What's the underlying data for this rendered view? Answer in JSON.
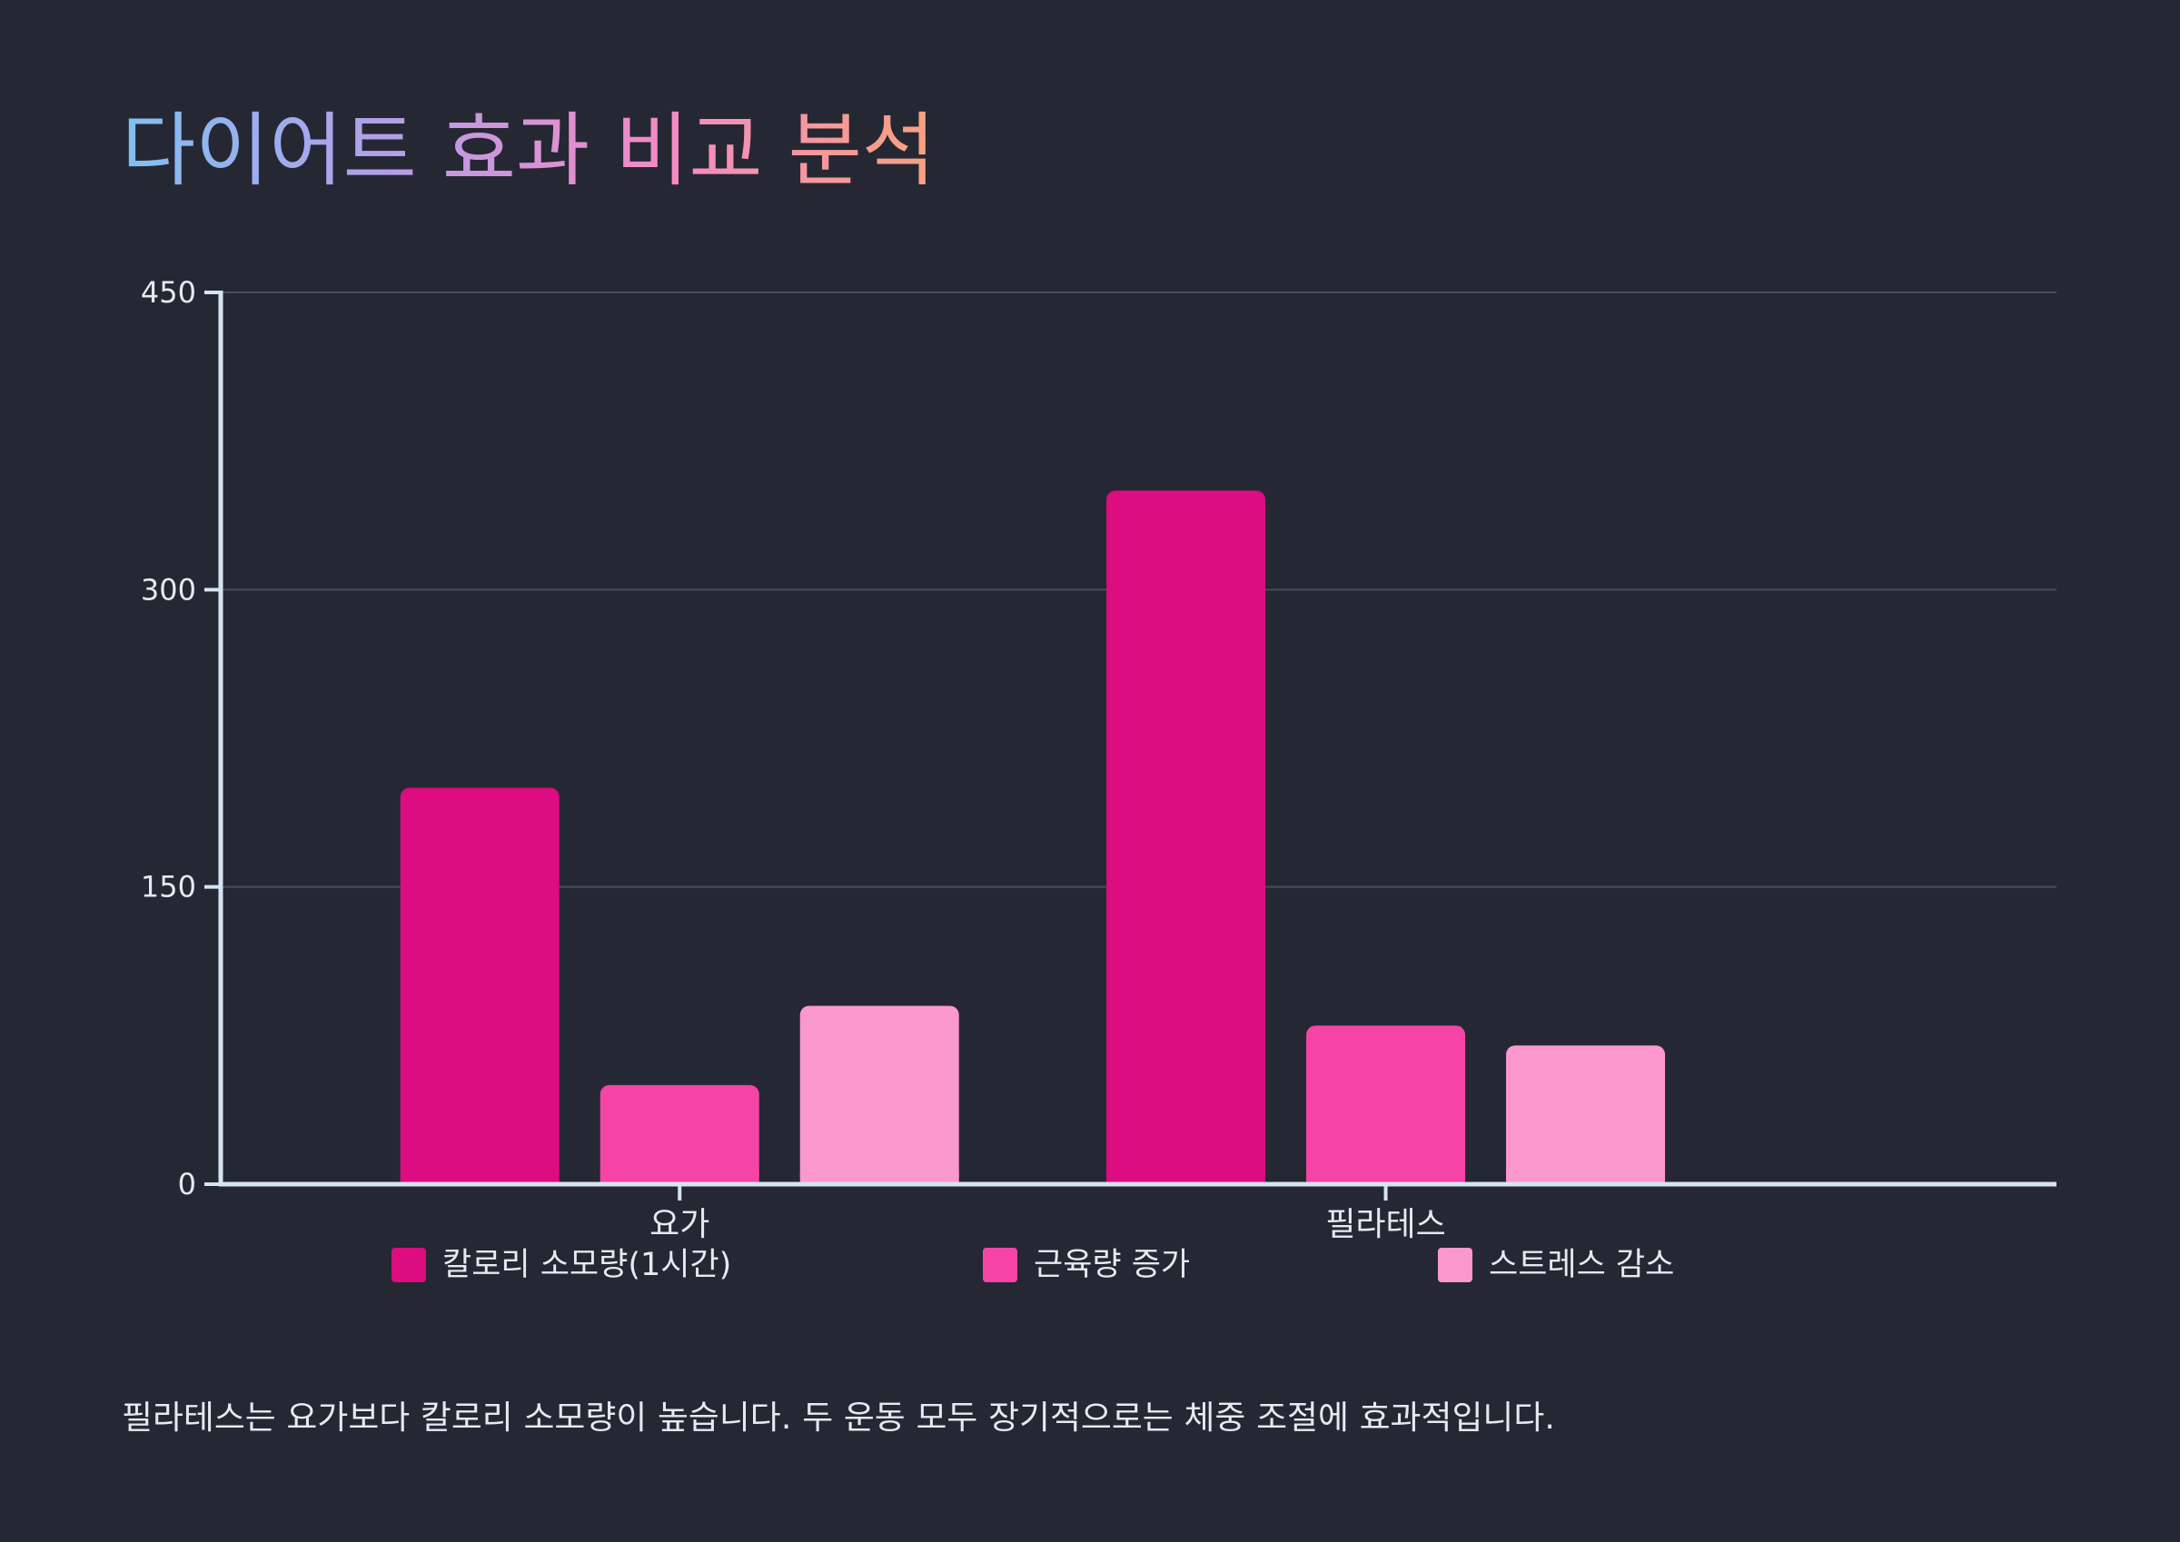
{
  "colors": {
    "background": "#252833",
    "text": "#e6e9f0",
    "grid": "#4a4d58",
    "axis": "#d6e4f2",
    "title_gradient": [
      "#7fc0f2",
      "#b59ee8",
      "#f48ac6",
      "#f7a27e"
    ]
  },
  "chart_data": {
    "type": "bar",
    "title": "다이어트 효과 비교 분석",
    "categories": [
      "요가",
      "필라테스"
    ],
    "series": [
      {
        "name": "칼로리 소모량(1시간)",
        "values": [
          200,
          350
        ],
        "color": "#dd0c80"
      },
      {
        "name": "근육량 증가",
        "values": [
          50,
          80
        ],
        "color": "#f544a6"
      },
      {
        "name": "스트레스 감소",
        "values": [
          90,
          70
        ],
        "color": "#fb98cd"
      }
    ],
    "ylim": [
      0,
      450
    ],
    "yticks": [
      0,
      150,
      300,
      450
    ],
    "grid": true,
    "legend_position": "bottom"
  },
  "caption": "필라테스는 요가보다 칼로리 소모량이 높습니다. 두 운동 모두 장기적으로는 체중 조절에 효과적입니다."
}
